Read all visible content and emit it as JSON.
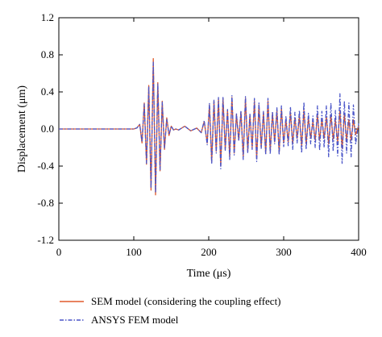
{
  "chart_data": {
    "type": "line",
    "xlabel": "Time (μs)",
    "ylabel": "Displacement (μm)",
    "xlim": [
      0,
      400
    ],
    "ylim": [
      -1.2,
      1.2
    ],
    "x_ticks": [
      "0",
      "100",
      "200",
      "300",
      "400"
    ],
    "y_ticks": [
      "1.2",
      "0.8",
      "0.4",
      "0.0",
      "-0.4",
      "-0.8",
      "-1.2"
    ],
    "grid": false,
    "legend_position": "below",
    "series": [
      {
        "name": "SEM model (considering the coupling effect)",
        "color": "#e05a2b",
        "style": "solid",
        "x": [
          0,
          95,
          100,
          104,
          108,
          111,
          114,
          117,
          120,
          123,
          126,
          129,
          132,
          135,
          138,
          141,
          144,
          147,
          150,
          153,
          156,
          160,
          168,
          176,
          184,
          190,
          194,
          198,
          201,
          204,
          207,
          210,
          213,
          216,
          219,
          222,
          225,
          228,
          231,
          234,
          237,
          240,
          243,
          246,
          249,
          252,
          255,
          258,
          261,
          264,
          267,
          270,
          273,
          276,
          279,
          282,
          285,
          288,
          291,
          294,
          297,
          300,
          303,
          306,
          309,
          312,
          315,
          318,
          321,
          324,
          327,
          330,
          333,
          336,
          339,
          342,
          345,
          348,
          351,
          354,
          357,
          360,
          363,
          366,
          369,
          372,
          375,
          378,
          381,
          384,
          387,
          390,
          393,
          396,
          400
        ],
        "y": [
          0.0,
          0.0,
          0.0,
          0.01,
          0.05,
          -0.15,
          0.28,
          -0.38,
          0.47,
          -0.66,
          0.76,
          -0.71,
          0.5,
          -0.45,
          0.3,
          -0.22,
          0.12,
          -0.07,
          0.03,
          -0.01,
          0.0,
          -0.01,
          0.03,
          -0.02,
          0.01,
          -0.04,
          0.08,
          -0.15,
          0.26,
          -0.35,
          0.3,
          -0.24,
          0.32,
          -0.4,
          0.33,
          -0.22,
          0.2,
          -0.3,
          0.34,
          -0.26,
          0.16,
          -0.12,
          0.18,
          -0.3,
          0.33,
          -0.24,
          0.15,
          -0.2,
          0.3,
          -0.32,
          0.26,
          -0.2,
          0.18,
          -0.26,
          0.3,
          -0.24,
          0.17,
          -0.14,
          0.2,
          -0.25,
          0.22,
          -0.15,
          0.1,
          -0.14,
          0.18,
          -0.16,
          0.12,
          -0.1,
          0.14,
          -0.18,
          0.2,
          -0.16,
          0.12,
          -0.1,
          0.08,
          -0.12,
          0.15,
          -0.12,
          0.1,
          -0.1,
          0.13,
          -0.16,
          0.15,
          -0.11,
          0.09,
          -0.14,
          0.2,
          -0.21,
          0.16,
          -0.12,
          0.1,
          -0.12,
          0.1,
          -0.06,
          0.03
        ]
      },
      {
        "name": "ANSYS FEM model",
        "color": "#4a55c8",
        "style": "dashdot",
        "x": [
          0,
          95,
          100,
          104,
          108,
          111,
          114,
          117,
          120,
          123,
          126,
          129,
          132,
          135,
          138,
          141,
          144,
          147,
          150,
          153,
          156,
          160,
          168,
          176,
          184,
          190,
          194,
          198,
          201,
          204,
          207,
          210,
          213,
          216,
          219,
          222,
          225,
          228,
          231,
          234,
          237,
          240,
          243,
          246,
          249,
          252,
          255,
          258,
          261,
          264,
          267,
          270,
          273,
          276,
          279,
          282,
          285,
          288,
          291,
          294,
          297,
          300,
          303,
          306,
          309,
          312,
          315,
          318,
          321,
          324,
          327,
          330,
          333,
          336,
          339,
          342,
          345,
          348,
          351,
          354,
          357,
          360,
          363,
          366,
          369,
          372,
          375,
          378,
          381,
          384,
          387,
          390,
          393,
          396,
          400
        ],
        "y": [
          0.0,
          0.0,
          0.0,
          0.01,
          0.05,
          -0.14,
          0.27,
          -0.37,
          0.46,
          -0.64,
          0.72,
          -0.69,
          0.49,
          -0.44,
          0.29,
          -0.21,
          0.11,
          -0.06,
          0.03,
          -0.01,
          0.0,
          -0.01,
          0.03,
          -0.02,
          0.01,
          -0.04,
          0.09,
          -0.17,
          0.28,
          -0.38,
          0.31,
          -0.26,
          0.34,
          -0.43,
          0.34,
          -0.23,
          0.21,
          -0.33,
          0.36,
          -0.28,
          0.17,
          -0.13,
          0.2,
          -0.33,
          0.35,
          -0.26,
          0.16,
          -0.22,
          0.33,
          -0.35,
          0.28,
          -0.21,
          0.19,
          -0.28,
          0.33,
          -0.27,
          0.19,
          -0.16,
          0.23,
          -0.28,
          0.25,
          -0.19,
          0.14,
          -0.18,
          0.24,
          -0.22,
          0.18,
          -0.15,
          0.2,
          -0.26,
          0.29,
          -0.22,
          0.17,
          -0.16,
          0.14,
          -0.2,
          0.25,
          -0.23,
          0.19,
          -0.2,
          0.25,
          -0.3,
          0.28,
          -0.24,
          0.2,
          -0.29,
          0.38,
          -0.37,
          0.3,
          -0.26,
          0.28,
          -0.3,
          0.26,
          -0.16,
          0.06
        ]
      }
    ]
  }
}
